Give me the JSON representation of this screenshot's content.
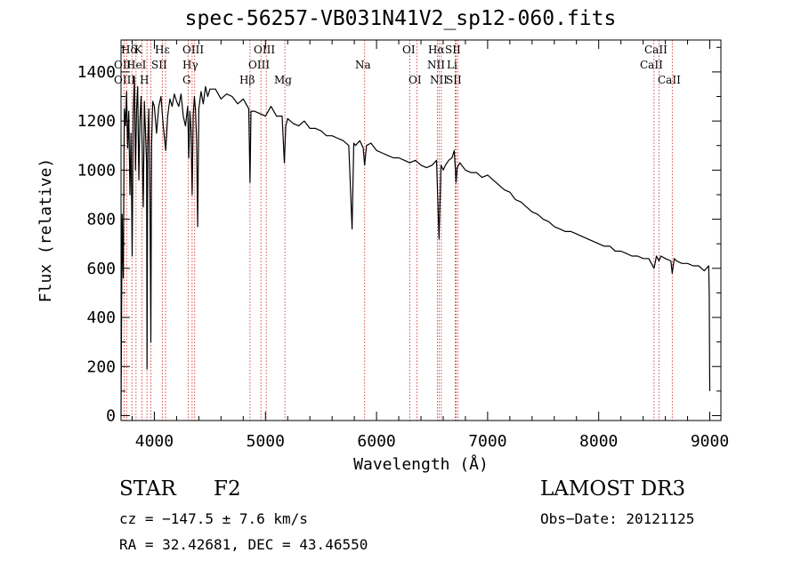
{
  "chart_data": {
    "type": "line",
    "title": "spec-56257-VB031N41V2_sp12-060.fits",
    "xlabel": "Wavelength (Å)",
    "ylabel": "Flux (relative)",
    "xlim": [
      3700,
      9100
    ],
    "ylim": [
      -20,
      1530
    ],
    "x_ticks": [
      4000,
      5000,
      6000,
      7000,
      8000,
      9000
    ],
    "y_ticks": [
      0,
      200,
      400,
      600,
      800,
      1000,
      1200,
      1400
    ],
    "x_tick_labels": [
      "4000",
      "5000",
      "6000",
      "7000",
      "8000",
      "9000"
    ],
    "y_tick_labels": [
      "0",
      "200",
      "400",
      "600",
      "800",
      "1000",
      "1200",
      "1400"
    ],
    "series": [
      {
        "name": "flux",
        "x": [
          3700,
          3710,
          3720,
          3730,
          3740,
          3750,
          3760,
          3770,
          3780,
          3790,
          3800,
          3810,
          3820,
          3830,
          3840,
          3850,
          3860,
          3870,
          3880,
          3890,
          3900,
          3910,
          3920,
          3930,
          3934,
          3940,
          3950,
          3960,
          3968,
          3975,
          3985,
          4000,
          4020,
          4040,
          4060,
          4080,
          4102,
          4120,
          4140,
          4160,
          4180,
          4200,
          4220,
          4240,
          4260,
          4280,
          4300,
          4310,
          4320,
          4330,
          4340,
          4350,
          4360,
          4370,
          4380,
          4390,
          4400,
          4420,
          4440,
          4460,
          4480,
          4500,
          4550,
          4600,
          4650,
          4700,
          4750,
          4800,
          4850,
          4861,
          4870,
          4900,
          4950,
          5000,
          5050,
          5100,
          5150,
          5170,
          5183,
          5200,
          5250,
          5300,
          5350,
          5400,
          5450,
          5500,
          5550,
          5600,
          5650,
          5700,
          5750,
          5780,
          5795,
          5810,
          5850,
          5880,
          5893,
          5910,
          5950,
          6000,
          6050,
          6100,
          6150,
          6200,
          6250,
          6300,
          6350,
          6400,
          6450,
          6500,
          6540,
          6563,
          6580,
          6600,
          6620,
          6650,
          6680,
          6700,
          6710,
          6716,
          6725,
          6750,
          6800,
          6850,
          6900,
          6950,
          7000,
          7050,
          7100,
          7150,
          7200,
          7250,
          7300,
          7350,
          7400,
          7450,
          7500,
          7550,
          7600,
          7650,
          7700,
          7750,
          7800,
          7850,
          7900,
          7950,
          8000,
          8050,
          8100,
          8150,
          8200,
          8250,
          8300,
          8350,
          8400,
          8450,
          8498,
          8520,
          8542,
          8560,
          8600,
          8650,
          8662,
          8680,
          8700,
          8750,
          8800,
          8850,
          8900,
          8950,
          8990,
          8995,
          9000
        ],
        "y": [
          0,
          820,
          560,
          1250,
          1180,
          1320,
          1090,
          1240,
          900,
          1150,
          650,
          1220,
          1380,
          1000,
          1250,
          1340,
          960,
          1200,
          1300,
          1100,
          850,
          1280,
          1150,
          1030,
          190,
          1100,
          1250,
          880,
          300,
          1100,
          1280,
          1260,
          1150,
          1260,
          1300,
          1180,
          1080,
          1220,
          1290,
          1260,
          1310,
          1280,
          1260,
          1310,
          1220,
          1180,
          1260,
          1050,
          1240,
          1160,
          900,
          1220,
          1300,
          1250,
          1120,
          770,
          1250,
          1320,
          1270,
          1340,
          1300,
          1330,
          1330,
          1290,
          1310,
          1300,
          1270,
          1290,
          1250,
          950,
          1240,
          1240,
          1230,
          1220,
          1260,
          1220,
          1220,
          1030,
          1180,
          1210,
          1190,
          1180,
          1200,
          1170,
          1170,
          1160,
          1140,
          1140,
          1130,
          1120,
          1100,
          760,
          1110,
          1100,
          1120,
          1090,
          1020,
          1100,
          1110,
          1080,
          1070,
          1060,
          1050,
          1050,
          1040,
          1030,
          1040,
          1020,
          1010,
          1020,
          1040,
          720,
          1020,
          1000,
          1020,
          1040,
          1050,
          1080,
          1000,
          950,
          1010,
          1030,
          1000,
          990,
          990,
          970,
          980,
          960,
          940,
          920,
          910,
          880,
          870,
          850,
          830,
          820,
          800,
          790,
          770,
          760,
          750,
          750,
          740,
          730,
          720,
          710,
          700,
          690,
          690,
          670,
          670,
          660,
          650,
          650,
          640,
          640,
          600,
          650,
          630,
          650,
          640,
          630,
          580,
          640,
          630,
          620,
          620,
          610,
          610,
          590,
          610,
          500,
          100
        ]
      }
    ],
    "line_labels": [
      {
        "name": "Hδ",
        "wave": 3933
      },
      {
        "name": "K",
        "wave": 3933
      },
      {
        "name": "Hε",
        "wave": 4101
      },
      {
        "name": "OII",
        "wave": 3727
      },
      {
        "name": "HeI",
        "wave": 3889
      },
      {
        "name": "SII",
        "wave": 4072
      },
      {
        "name": "OIII",
        "wave": 3727
      },
      {
        "name": "H",
        "wave": 3968
      },
      {
        "name": "OIII",
        "wave": 4363
      },
      {
        "name": "Hγ",
        "wave": 4340
      },
      {
        "name": "G",
        "wave": 4304
      },
      {
        "name": "OIII",
        "wave": 4959
      },
      {
        "name": "OIII",
        "wave": 5007
      },
      {
        "name": "Hβ",
        "wave": 4861
      },
      {
        "name": "Mg",
        "wave": 5175
      },
      {
        "name": "Na",
        "wave": 5893
      },
      {
        "name": "OI",
        "wave": 6300
      },
      {
        "name": "OI",
        "wave": 6363
      },
      {
        "name": "Hα",
        "wave": 6563
      },
      {
        "name": "SII",
        "wave": 6716
      },
      {
        "name": "NII",
        "wave": 6548
      },
      {
        "name": "Li",
        "wave": 6708
      },
      {
        "name": "NII",
        "wave": 6583
      },
      {
        "name": "SII",
        "wave": 6731
      },
      {
        "name": "CaII",
        "wave": 8542
      },
      {
        "name": "CaII",
        "wave": 8498
      },
      {
        "name": "CaII",
        "wave": 8662
      }
    ],
    "line_marker_waves": [
      3727,
      3750,
      3798,
      3835,
      3889,
      3933,
      3968,
      4072,
      4101,
      4304,
      4340,
      4363,
      4861,
      4959,
      5007,
      5175,
      5893,
      6300,
      6363,
      6548,
      6563,
      6583,
      6708,
      6716,
      6731,
      8498,
      8542,
      8662
    ],
    "colors": {
      "spectrum": "#000000",
      "line_markers": "#d02020",
      "axes": "#000000"
    }
  },
  "info": {
    "object_class": "STAR",
    "subclass": "F2",
    "survey": "LAMOST DR3",
    "cz": "cz = −147.5 ± 7.6 km/s",
    "obs_date": "Obs−Date: 20121125",
    "coords": "RA =  32.42681, DEC =  43.46550"
  }
}
